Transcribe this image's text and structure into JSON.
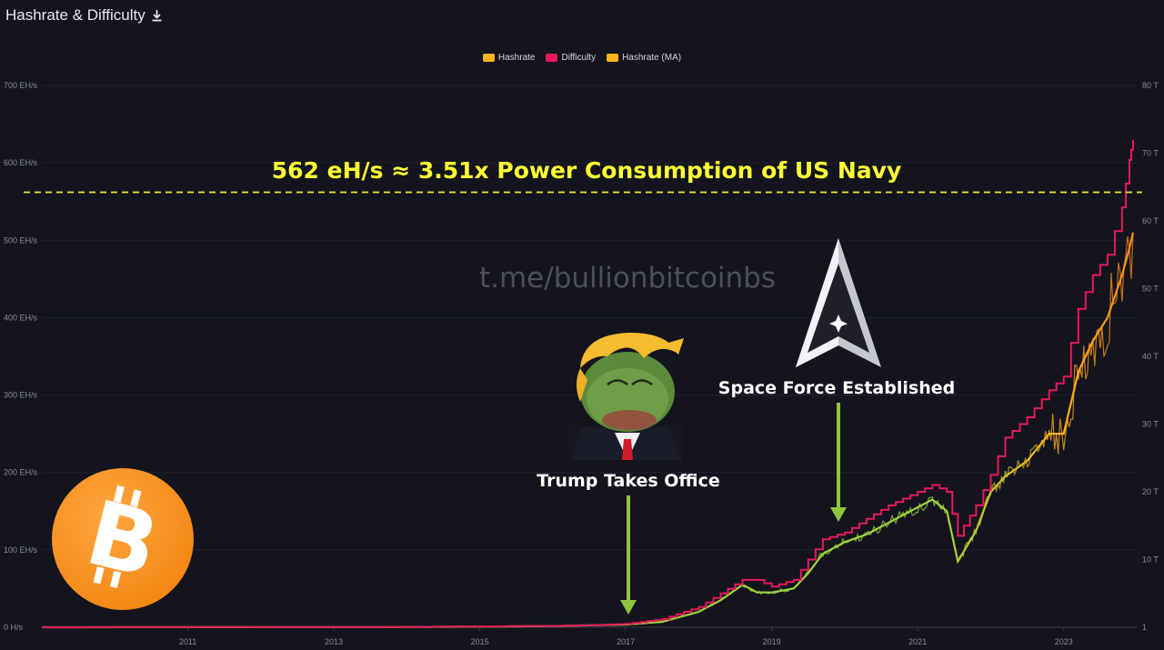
{
  "header": {
    "title": "Hashrate & Difficulty",
    "download_icon": "download-icon"
  },
  "legend": [
    {
      "label": "Hashrate",
      "color": "#ffb21a"
    },
    {
      "label": "Difficulty",
      "color": "#e8185c"
    },
    {
      "label": "Hashrate (MA)",
      "color": "#ffb21a"
    }
  ],
  "annotations": {
    "headline": "562 eH/s  ≈  3.51x Power Consumption of US Navy",
    "watermark": "t.me/bullionbitcoinbs",
    "trump": "Trump Takes Office",
    "space_force": "Space Force Established",
    "threshold_ehs": 562
  },
  "colors": {
    "background": "#13141d",
    "hashrate": "#ffb21a",
    "hashrate_early": "#8fd43a",
    "difficulty": "#e8185c",
    "threshold": "#f2e82a",
    "arrow": "#8cc63f",
    "bitcoin": "#f7931a"
  },
  "chart_data": {
    "type": "line",
    "title": "Hashrate & Difficulty",
    "x_ticks": [
      "2011",
      "2013",
      "2015",
      "2017",
      "2019",
      "2021",
      "2023"
    ],
    "y_left_ticks": [
      "0 H/s",
      "100 EH/s",
      "200 EH/s",
      "300 EH/s",
      "400 EH/s",
      "500 EH/s",
      "600 EH/s",
      "700 EH/s"
    ],
    "y_right_ticks": [
      "1",
      "10 T",
      "20 T",
      "30 T",
      "40 T",
      "50 T",
      "60 T",
      "70 T",
      "80 T"
    ],
    "ylim_left": [
      0,
      700
    ],
    "ylim_right": [
      0,
      80
    ],
    "xlim": [
      2009.0,
      2024.0
    ],
    "legend_position": "top-center",
    "grid": true,
    "series": [
      {
        "name": "Hashrate",
        "axis": "left",
        "x": [
          2009.0,
          2014.0,
          2016.0,
          2016.5,
          2017.0,
          2017.5,
          2018.0,
          2018.3,
          2018.6,
          2018.8,
          2019.0,
          2019.3,
          2019.5,
          2019.7,
          2020.0,
          2020.3,
          2020.6,
          2020.9,
          2021.2,
          2021.4,
          2021.55,
          2021.8,
          2022.0,
          2022.2,
          2022.5,
          2022.8,
          2023.0,
          2023.2,
          2023.4,
          2023.6,
          2023.8,
          2023.9,
          2023.95
        ],
        "y": [
          0,
          0.3,
          1.5,
          2.5,
          3.5,
          7,
          20,
          35,
          55,
          45,
          45,
          50,
          70,
          95,
          110,
          120,
          135,
          150,
          165,
          150,
          85,
          125,
          175,
          195,
          215,
          250,
          250,
          330,
          370,
          400,
          455,
          490,
          510
        ]
      },
      {
        "name": "Difficulty",
        "axis": "right",
        "x": [
          2009.0,
          2014.0,
          2016.0,
          2016.5,
          2017.0,
          2017.5,
          2018.0,
          2018.3,
          2018.6,
          2018.8,
          2019.0,
          2019.3,
          2019.5,
          2019.7,
          2020.0,
          2020.3,
          2020.6,
          2020.9,
          2021.2,
          2021.4,
          2021.55,
          2021.8,
          2022.0,
          2022.2,
          2022.5,
          2022.8,
          2023.0,
          2023.2,
          2023.4,
          2023.6,
          2023.8,
          2023.9,
          2023.95
        ],
        "y": [
          0,
          0.05,
          0.2,
          0.3,
          0.5,
          1.2,
          3,
          5,
          7,
          7,
          6,
          7,
          10,
          13,
          14,
          16,
          18,
          19.5,
          21,
          20,
          13.5,
          18,
          22.5,
          28,
          31,
          35,
          37,
          47,
          52,
          55,
          62,
          69,
          72
        ]
      }
    ]
  }
}
